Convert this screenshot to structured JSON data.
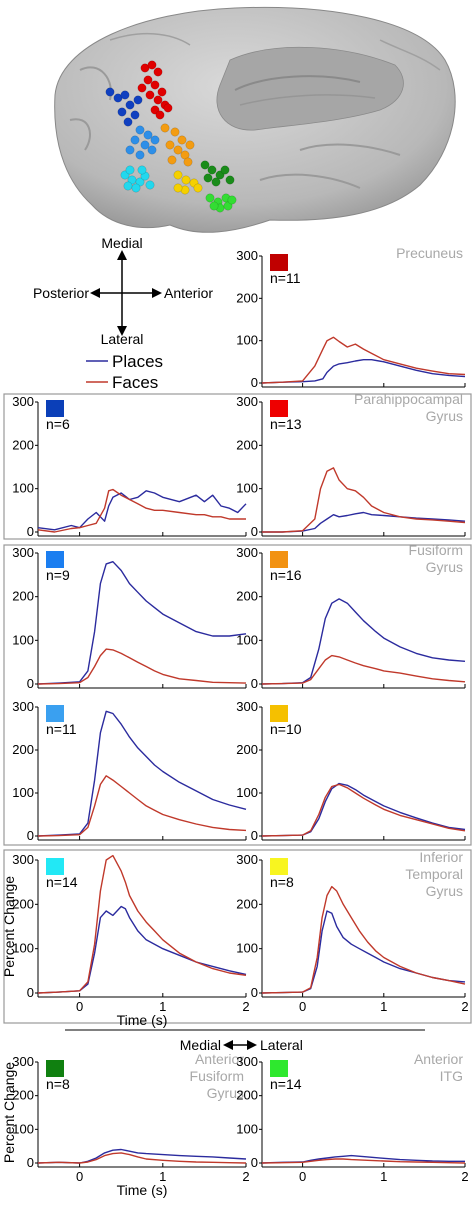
{
  "orientation": {
    "up": "Medial",
    "down": "Lateral",
    "left": "Posterior",
    "right": "Anterior"
  },
  "legend": [
    {
      "label": "Places",
      "color": "#2b2b9e"
    },
    {
      "label": "Faces",
      "color": "#c0392b"
    }
  ],
  "divider": {
    "left": "Medial",
    "right": "Lateral"
  },
  "colors": {
    "places": "#2b2b9e",
    "faces": "#c0392b",
    "box": "#999999",
    "region": "#a8a8a8"
  },
  "electrode_colors": {
    "red": "#e00000",
    "blue": "#1040c0",
    "azure": "#2e8fe8",
    "orange": "#f39c12",
    "yellow": "#f5d000",
    "cyan": "#22d8ee",
    "green": "#1a8c1a",
    "lime": "#33dd33"
  },
  "chart_data": [
    {
      "type": "line",
      "id": "precuneus",
      "swatch_color": "#c00000",
      "n_label": "n=11",
      "region": [
        "Precuneus"
      ],
      "xlim": [
        -0.5,
        2
      ],
      "ylim": [
        0,
        300
      ],
      "xticks": [],
      "yticks": [
        0,
        100,
        200,
        300
      ],
      "xlabel": "",
      "ylabel": "",
      "x": [
        -0.5,
        -0.25,
        0,
        0.15,
        0.25,
        0.3,
        0.38,
        0.45,
        0.55,
        0.65,
        0.75,
        0.85,
        1.0,
        1.2,
        1.4,
        1.6,
        1.8,
        2.0
      ],
      "series": [
        {
          "name": "Places",
          "values": [
            0,
            2,
            3,
            5,
            10,
            25,
            40,
            45,
            48,
            52,
            55,
            55,
            50,
            40,
            30,
            22,
            18,
            15
          ]
        },
        {
          "name": "Faces",
          "values": [
            0,
            2,
            5,
            40,
            80,
            100,
            108,
            98,
            85,
            92,
            80,
            70,
            55,
            45,
            35,
            28,
            22,
            20
          ]
        }
      ]
    },
    {
      "type": "line",
      "id": "parahipp_medial",
      "swatch_color": "#0b3fb8",
      "n_label": "n=6",
      "region": [],
      "xlim": [
        -0.5,
        2
      ],
      "ylim": [
        0,
        300
      ],
      "xticks": [],
      "yticks": [
        0,
        100,
        200,
        300
      ],
      "xlabel": "",
      "ylabel": "",
      "x": [
        -0.5,
        -0.3,
        -0.1,
        0,
        0.1,
        0.2,
        0.3,
        0.35,
        0.4,
        0.5,
        0.6,
        0.7,
        0.8,
        0.9,
        1.0,
        1.2,
        1.4,
        1.5,
        1.6,
        1.7,
        1.8,
        1.9,
        2.0
      ],
      "series": [
        {
          "name": "Places",
          "values": [
            10,
            5,
            15,
            10,
            30,
            45,
            25,
            60,
            80,
            90,
            75,
            80,
            95,
            90,
            80,
            70,
            85,
            70,
            85,
            60,
            55,
            45,
            65
          ]
        },
        {
          "name": "Faces",
          "values": [
            5,
            0,
            8,
            10,
            15,
            20,
            55,
            95,
            98,
            85,
            75,
            65,
            55,
            50,
            50,
            45,
            40,
            40,
            35,
            35,
            30,
            30,
            30
          ]
        }
      ]
    },
    {
      "type": "line",
      "id": "parahipp_lateral",
      "swatch_color": "#ee0000",
      "n_label": "n=13",
      "region": [
        "Parahippocampal",
        "Gyrus"
      ],
      "xlim": [
        -0.5,
        2
      ],
      "ylim": [
        0,
        300
      ],
      "xticks": [],
      "yticks": [
        0,
        100,
        200,
        300
      ],
      "xlabel": "",
      "ylabel": "",
      "x": [
        -0.5,
        -0.25,
        0,
        0.15,
        0.22,
        0.3,
        0.38,
        0.45,
        0.55,
        0.65,
        0.75,
        0.85,
        1.0,
        1.2,
        1.4,
        1.6,
        1.8,
        2.0
      ],
      "series": [
        {
          "name": "Places",
          "values": [
            0,
            0,
            2,
            8,
            20,
            30,
            40,
            35,
            38,
            42,
            45,
            40,
            38,
            35,
            32,
            30,
            28,
            25
          ]
        },
        {
          "name": "Faces",
          "values": [
            0,
            0,
            3,
            30,
            100,
            140,
            148,
            120,
            100,
            95,
            80,
            60,
            45,
            35,
            30,
            28,
            25,
            22
          ]
        }
      ]
    },
    {
      "type": "line",
      "id": "fusiform_medial",
      "swatch_color": "#1b7ef0",
      "n_label": "n=9",
      "region": [],
      "xlim": [
        -0.5,
        2
      ],
      "ylim": [
        0,
        300
      ],
      "xticks": [],
      "yticks": [
        0,
        100,
        200,
        300
      ],
      "xlabel": "",
      "ylabel": "",
      "x": [
        -0.5,
        -0.25,
        0,
        0.1,
        0.18,
        0.25,
        0.32,
        0.4,
        0.5,
        0.6,
        0.7,
        0.8,
        0.9,
        1.0,
        1.2,
        1.4,
        1.6,
        1.8,
        2.0
      ],
      "series": [
        {
          "name": "Places",
          "values": [
            0,
            2,
            5,
            30,
            120,
            230,
            275,
            280,
            260,
            230,
            210,
            190,
            175,
            160,
            140,
            120,
            110,
            110,
            115
          ]
        },
        {
          "name": "Faces",
          "values": [
            0,
            1,
            3,
            15,
            40,
            65,
            80,
            78,
            70,
            60,
            50,
            40,
            30,
            22,
            12,
            8,
            4,
            3,
            2
          ]
        }
      ]
    },
    {
      "type": "line",
      "id": "fusiform_lateral",
      "swatch_color": "#f29212",
      "n_label": "n=16",
      "region": [
        "Fusiform",
        "Gyrus"
      ],
      "xlim": [
        -0.5,
        2
      ],
      "ylim": [
        0,
        300
      ],
      "xticks": [],
      "yticks": [
        0,
        100,
        200,
        300
      ],
      "xlabel": "",
      "ylabel": "",
      "x": [
        -0.5,
        -0.25,
        0,
        0.1,
        0.2,
        0.28,
        0.36,
        0.45,
        0.55,
        0.65,
        0.75,
        0.9,
        1.0,
        1.2,
        1.4,
        1.6,
        1.8,
        2.0
      ],
      "series": [
        {
          "name": "Places",
          "values": [
            0,
            1,
            3,
            15,
            80,
            150,
            185,
            195,
            185,
            165,
            145,
            120,
            105,
            85,
            70,
            60,
            55,
            52
          ]
        },
        {
          "name": "Faces",
          "values": [
            0,
            1,
            2,
            10,
            35,
            55,
            65,
            62,
            55,
            48,
            42,
            35,
            30,
            25,
            18,
            12,
            8,
            5
          ]
        }
      ]
    },
    {
      "type": "line",
      "id": "fusiform_medial2",
      "swatch_color": "#3aa0f0",
      "n_label": "n=11",
      "region": [],
      "xlim": [
        -0.5,
        2
      ],
      "ylim": [
        0,
        300
      ],
      "xticks": [],
      "yticks": [
        0,
        100,
        200,
        300
      ],
      "xlabel": "",
      "ylabel": "",
      "x": [
        -0.5,
        -0.25,
        0,
        0.1,
        0.18,
        0.25,
        0.32,
        0.4,
        0.5,
        0.6,
        0.7,
        0.8,
        0.9,
        1.0,
        1.2,
        1.4,
        1.6,
        1.8,
        2.0
      ],
      "series": [
        {
          "name": "Places",
          "values": [
            0,
            2,
            5,
            30,
            130,
            240,
            290,
            285,
            260,
            230,
            205,
            185,
            165,
            150,
            125,
            105,
            85,
            72,
            62
          ]
        },
        {
          "name": "Faces",
          "values": [
            0,
            1,
            3,
            20,
            70,
            120,
            140,
            130,
            115,
            100,
            85,
            70,
            60,
            50,
            38,
            28,
            20,
            15,
            13
          ]
        }
      ]
    },
    {
      "type": "line",
      "id": "fusiform_lateral2",
      "swatch_color": "#f5c000",
      "n_label": "n=10",
      "region": [],
      "xlim": [
        -0.5,
        2
      ],
      "ylim": [
        0,
        300
      ],
      "xticks": [],
      "yticks": [
        0,
        100,
        200,
        300
      ],
      "xlabel": "",
      "ylabel": "",
      "x": [
        -0.5,
        -0.25,
        0,
        0.1,
        0.2,
        0.28,
        0.36,
        0.45,
        0.55,
        0.65,
        0.75,
        0.9,
        1.0,
        1.2,
        1.4,
        1.6,
        1.8,
        2.0
      ],
      "series": [
        {
          "name": "Places",
          "values": [
            0,
            1,
            2,
            10,
            40,
            80,
            110,
            122,
            118,
            108,
            95,
            80,
            70,
            55,
            42,
            30,
            20,
            15
          ]
        },
        {
          "name": "Faces",
          "values": [
            0,
            1,
            2,
            12,
            50,
            90,
            115,
            120,
            112,
            100,
            88,
            72,
            62,
            48,
            38,
            28,
            18,
            12
          ]
        }
      ]
    },
    {
      "type": "line",
      "id": "inferior_temporal_medial",
      "swatch_color": "#22e8f5",
      "n_label": "n=14",
      "region": [],
      "xlim": [
        -0.5,
        2
      ],
      "ylim": [
        0,
        300
      ],
      "xticks": [
        0,
        1,
        2
      ],
      "yticks": [
        0,
        100,
        200,
        300
      ],
      "xlabel": "Time (s)",
      "ylabel": "Percent Change",
      "x": [
        -0.5,
        -0.25,
        0,
        0.1,
        0.18,
        0.25,
        0.32,
        0.4,
        0.5,
        0.55,
        0.6,
        0.7,
        0.8,
        0.9,
        1.0,
        1.2,
        1.4,
        1.6,
        1.8,
        2.0
      ],
      "series": [
        {
          "name": "Places",
          "values": [
            0,
            2,
            5,
            20,
            90,
            170,
            185,
            175,
            195,
            190,
            170,
            140,
            120,
            110,
            100,
            85,
            70,
            60,
            50,
            42
          ]
        },
        {
          "name": "Faces",
          "values": [
            0,
            2,
            5,
            25,
            110,
            230,
            300,
            310,
            275,
            250,
            220,
            185,
            160,
            140,
            120,
            90,
            70,
            55,
            45,
            40
          ]
        }
      ]
    },
    {
      "type": "line",
      "id": "inferior_temporal_lateral",
      "swatch_color": "#f8f520",
      "n_label": "n=8",
      "region": [
        "Inferior",
        "Temporal",
        "Gyrus"
      ],
      "xlim": [
        -0.5,
        2
      ],
      "ylim": [
        0,
        300
      ],
      "xticks": [
        0,
        1,
        2
      ],
      "yticks": [
        0,
        100,
        200,
        300
      ],
      "xlabel": "",
      "ylabel": "",
      "x": [
        -0.5,
        -0.25,
        0,
        0.1,
        0.18,
        0.24,
        0.3,
        0.36,
        0.42,
        0.5,
        0.6,
        0.7,
        0.8,
        0.9,
        1.0,
        1.2,
        1.4,
        1.6,
        1.8,
        2.0
      ],
      "series": [
        {
          "name": "Places",
          "values": [
            0,
            1,
            2,
            10,
            60,
            140,
            185,
            180,
            150,
            125,
            110,
            100,
            90,
            80,
            70,
            55,
            45,
            35,
            28,
            25
          ]
        },
        {
          "name": "Faces",
          "values": [
            0,
            1,
            2,
            12,
            80,
            170,
            220,
            240,
            230,
            200,
            170,
            140,
            115,
            95,
            80,
            60,
            45,
            35,
            28,
            20
          ]
        }
      ]
    },
    {
      "type": "line",
      "id": "anterior_fusiform",
      "swatch_color": "#108010",
      "n_label": "n=8",
      "region": [
        "Anterior",
        "Fusiform",
        "Gyrus"
      ],
      "xlim": [
        -0.5,
        2
      ],
      "ylim": [
        0,
        300
      ],
      "xticks": [
        0,
        1,
        2
      ],
      "yticks": [
        0,
        100,
        200,
        300
      ],
      "xlabel": "Time (s)",
      "ylabel": "Percent Change",
      "x": [
        -0.5,
        -0.25,
        0,
        0.1,
        0.2,
        0.3,
        0.4,
        0.5,
        0.6,
        0.7,
        0.8,
        1.0,
        1.2,
        1.4,
        1.6,
        1.8,
        2.0
      ],
      "series": [
        {
          "name": "Places",
          "values": [
            0,
            2,
            0,
            5,
            15,
            30,
            38,
            40,
            35,
            30,
            28,
            25,
            22,
            20,
            18,
            15,
            12
          ]
        },
        {
          "name": "Faces",
          "values": [
            0,
            2,
            0,
            3,
            10,
            22,
            28,
            30,
            25,
            18,
            12,
            8,
            5,
            3,
            2,
            1,
            0
          ]
        }
      ]
    },
    {
      "type": "line",
      "id": "anterior_itg",
      "swatch_color": "#2ee82e",
      "n_label": "n=14",
      "region": [
        "Anterior",
        "ITG"
      ],
      "xlim": [
        -0.5,
        2
      ],
      "ylim": [
        0,
        300
      ],
      "xticks": [
        0,
        1,
        2
      ],
      "yticks": [
        0,
        100,
        200,
        300
      ],
      "xlabel": "",
      "ylabel": "",
      "x": [
        -0.5,
        -0.25,
        0,
        0.1,
        0.2,
        0.3,
        0.4,
        0.5,
        0.6,
        0.8,
        1.0,
        1.2,
        1.4,
        1.6,
        1.8,
        2.0
      ],
      "series": [
        {
          "name": "Places",
          "values": [
            0,
            2,
            3,
            8,
            12,
            15,
            18,
            20,
            22,
            18,
            14,
            10,
            8,
            6,
            5,
            5
          ]
        },
        {
          "name": "Faces",
          "values": [
            0,
            1,
            2,
            5,
            8,
            10,
            12,
            12,
            10,
            8,
            6,
            4,
            3,
            2,
            1,
            0
          ]
        }
      ]
    }
  ]
}
